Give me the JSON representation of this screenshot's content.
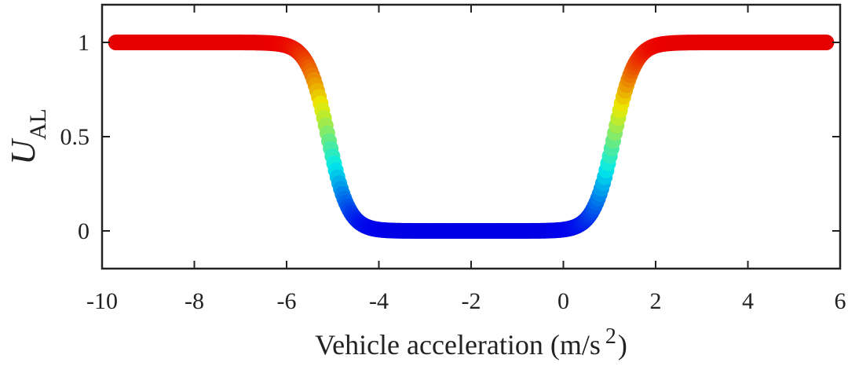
{
  "chart_data": {
    "type": "scatter",
    "xlabel": "Vehicle acceleration (m/s",
    "xlabel_superscript": "2",
    "xlabel_close": ")",
    "ylabel": "U",
    "ylabel_subscript": "AL",
    "xlim": [
      -10,
      6
    ],
    "ylim": [
      -0.2,
      1.2
    ],
    "x_ticks": [
      -10,
      -8,
      -6,
      -4,
      -2,
      0,
      2,
      4,
      6
    ],
    "x_tick_labels": [
      "-10",
      "-8",
      "-6",
      "-4",
      "-2",
      "0",
      "2",
      "4",
      "6"
    ],
    "y_ticks": [
      0,
      0.5,
      1
    ],
    "y_tick_labels": [
      "0",
      "0.5",
      "1"
    ],
    "grid": false,
    "colormap": "jet",
    "series": [
      {
        "x_range": [
          -9.7,
          5.7
        ],
        "curve": "double-sigmoid",
        "midpoint_low": -5.1,
        "midpoint_high": 1.1,
        "value_min": 0,
        "value_max": 1,
        "marker": "filled-circle"
      }
    ]
  }
}
